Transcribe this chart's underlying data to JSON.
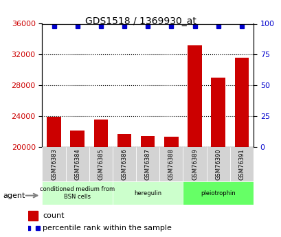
{
  "title": "GDS1518 / 1369930_at",
  "categories": [
    "GSM76383",
    "GSM76384",
    "GSM76385",
    "GSM76386",
    "GSM76387",
    "GSM76388",
    "GSM76389",
    "GSM76390",
    "GSM76391"
  ],
  "counts": [
    23950,
    22100,
    23600,
    21700,
    21450,
    21350,
    33200,
    29000,
    31600
  ],
  "percentiles": [
    98,
    98,
    98,
    98,
    98,
    98,
    98,
    98,
    98
  ],
  "ylim_left": [
    20000,
    36000
  ],
  "ylim_right": [
    0,
    100
  ],
  "yticks_left": [
    20000,
    24000,
    28000,
    32000,
    36000
  ],
  "yticks_right": [
    0,
    25,
    50,
    75,
    100
  ],
  "bar_color": "#cc0000",
  "dot_color": "#0000cc",
  "groups": [
    {
      "label": "conditioned medium from\nBSN cells",
      "start": 0,
      "end": 3,
      "color": "#ccffcc"
    },
    {
      "label": "heregulin",
      "start": 3,
      "end": 6,
      "color": "#ccffcc"
    },
    {
      "label": "pleiotrophin",
      "start": 6,
      "end": 9,
      "color": "#66ff66"
    }
  ],
  "xlabel_area_color": "#d3d3d3",
  "agent_label": "agent",
  "legend_count_color": "#cc0000",
  "legend_percentile_color": "#0000cc",
  "background_color": "#ffffff",
  "plot_bg_color": "#ffffff",
  "tick_label_color_left": "#cc0000",
  "tick_label_color_right": "#0000cc"
}
